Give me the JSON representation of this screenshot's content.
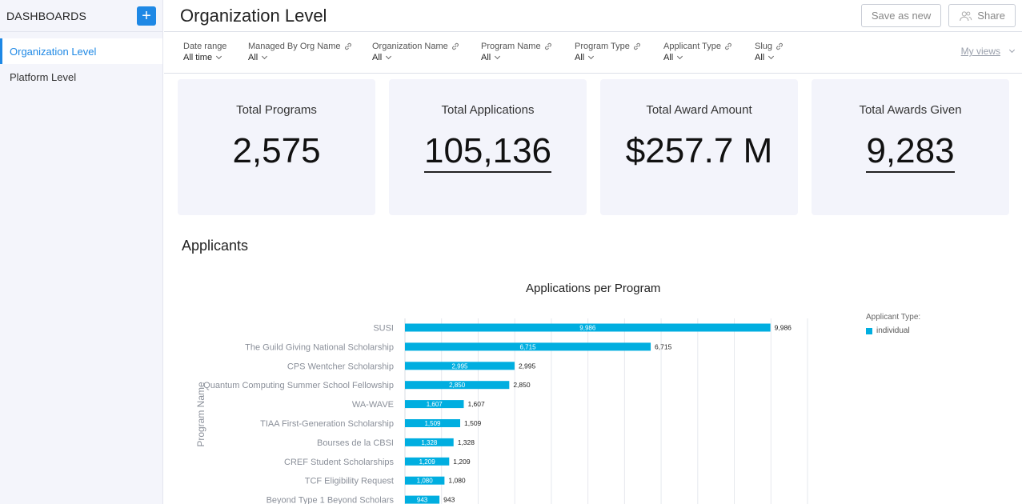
{
  "sidebar": {
    "title": "DASHBOARDS",
    "add_label": "+",
    "items": [
      {
        "label": "Organization Level",
        "active": true
      },
      {
        "label": "Platform Level",
        "active": false
      }
    ]
  },
  "header": {
    "title": "Organization Level",
    "save_label": "Save as new",
    "share_label": "Share"
  },
  "filters": [
    {
      "label": "Date range",
      "value": "All time",
      "link_icon": false
    },
    {
      "label": "Managed By Org Name",
      "value": "All",
      "link_icon": true
    },
    {
      "label": "Organization Name",
      "value": "All",
      "link_icon": true
    },
    {
      "label": "Program Name",
      "value": "All",
      "link_icon": true
    },
    {
      "label": "Program Type",
      "value": "All",
      "link_icon": true
    },
    {
      "label": "Applicant Type",
      "value": "All",
      "link_icon": true
    },
    {
      "label": "Slug",
      "value": "All",
      "link_icon": true
    }
  ],
  "my_views_label": "My views",
  "kpis": [
    {
      "title": "Total Programs",
      "value": "2,575",
      "link": false
    },
    {
      "title": "Total Applications",
      "value": "105,136",
      "link": true
    },
    {
      "title": "Total Award Amount",
      "value": "$257.7 M",
      "link": false
    },
    {
      "title": "Total Awards Given",
      "value": "9,283",
      "link": true
    }
  ],
  "section_title": "Applicants",
  "chart_data": {
    "type": "bar",
    "orientation": "horizontal",
    "title": "Applications per Program",
    "ylabel": "Program Name",
    "xlabel": "",
    "xlim": [
      0,
      11000
    ],
    "grid": true,
    "legend": {
      "title": "Applicant Type:",
      "placement": "right",
      "entries": [
        "individual"
      ]
    },
    "categories": [
      "SUSI",
      "The Guild Giving National Scholarship",
      "CPS Wentcher Scholarship",
      "Quantum Computing Summer School Fellowship",
      "WA-WAVE",
      "TIAA First-Generation Scholarship",
      "Bourses de la CBSI",
      "CREF Student Scholarships",
      "TCF Eligibility Request",
      "Beyond Type 1 Beyond Scholars"
    ],
    "series": [
      {
        "name": "individual",
        "values": [
          9986,
          6715,
          2995,
          2850,
          1607,
          1509,
          1328,
          1209,
          1080,
          943
        ],
        "color": "#00aee0"
      }
    ],
    "value_labels": [
      "9,986",
      "6,715",
      "2,995",
      "2,850",
      "1,607",
      "1,509",
      "1,328",
      "1,209",
      "1,080",
      "943"
    ]
  }
}
